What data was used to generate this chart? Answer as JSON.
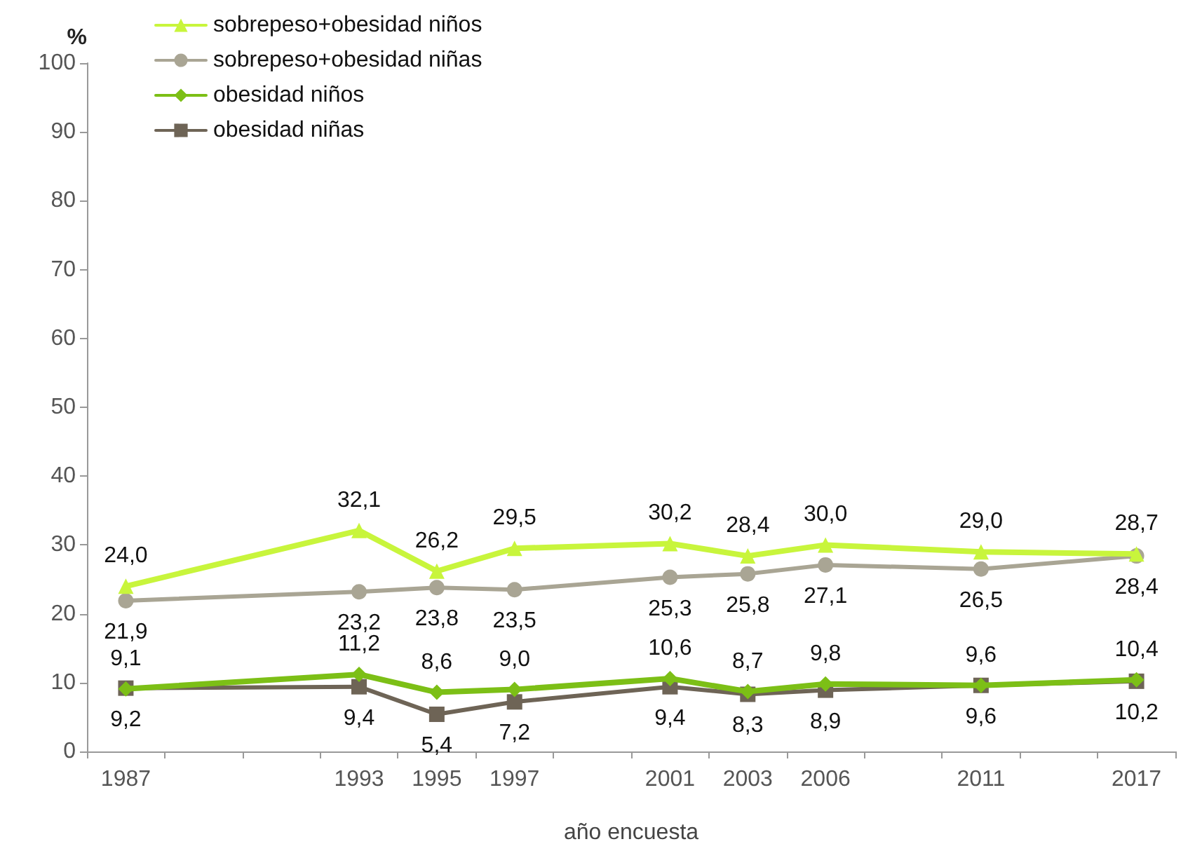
{
  "chart_data": {
    "type": "line",
    "xlabel": "año encuesta",
    "ylabel": "%",
    "categories": [
      "1987",
      null,
      null,
      "1993",
      "1995",
      "1997",
      null,
      "2001",
      "2003",
      "2006",
      null,
      "2011",
      null,
      "2017"
    ],
    "series": [
      {
        "name": "sobrepeso+obesidad niños",
        "color": "#c8f53c",
        "marker": "triangle",
        "values": [
          24.0,
          null,
          null,
          32.1,
          26.2,
          29.5,
          null,
          30.2,
          28.4,
          30.0,
          null,
          29.0,
          null,
          28.7
        ],
        "value_labels": [
          "24,0",
          null,
          null,
          "32,1",
          "26,2",
          "29,5",
          null,
          "30,2",
          "28,4",
          "30,0",
          null,
          "29,0",
          null,
          "28,7"
        ]
      },
      {
        "name": "sobrepeso+obesidad niñas",
        "color": "#a9a594",
        "marker": "circle",
        "values": [
          21.9,
          null,
          null,
          23.2,
          23.8,
          23.5,
          null,
          25.3,
          25.8,
          27.1,
          null,
          26.5,
          null,
          28.4
        ],
        "value_labels": [
          "21,9",
          null,
          null,
          "23,2",
          "23,8",
          "23,5",
          null,
          "25,3",
          "25,8",
          "27,1",
          null,
          "26,5",
          null,
          "28,4"
        ]
      },
      {
        "name": "obesidad niños",
        "color": "#7cbf16",
        "marker": "diamond",
        "values": [
          9.1,
          null,
          null,
          11.2,
          8.6,
          9.0,
          null,
          10.6,
          8.7,
          9.8,
          null,
          9.6,
          null,
          10.4
        ],
        "value_labels": [
          "9,1",
          null,
          null,
          "11,2",
          "8,6",
          "9,0",
          null,
          "10,6",
          "8,7",
          "9,8",
          null,
          "9,6",
          null,
          "10,4"
        ]
      },
      {
        "name": "obesidad niñas",
        "color": "#6e6456",
        "marker": "square",
        "values": [
          9.2,
          null,
          null,
          9.4,
          5.4,
          7.2,
          null,
          9.4,
          8.3,
          8.9,
          null,
          9.6,
          null,
          10.2
        ],
        "value_labels": [
          "9,2",
          null,
          null,
          "9,4",
          "5,4",
          "7,2",
          null,
          "9,4",
          "8,3",
          "8,9",
          null,
          "9,6",
          null,
          "10,2"
        ]
      }
    ],
    "ylim": [
      0,
      100
    ],
    "yticks": [
      0,
      10,
      20,
      30,
      40,
      50,
      60,
      70,
      80,
      90,
      100
    ],
    "grid": false,
    "legend": "top left"
  }
}
